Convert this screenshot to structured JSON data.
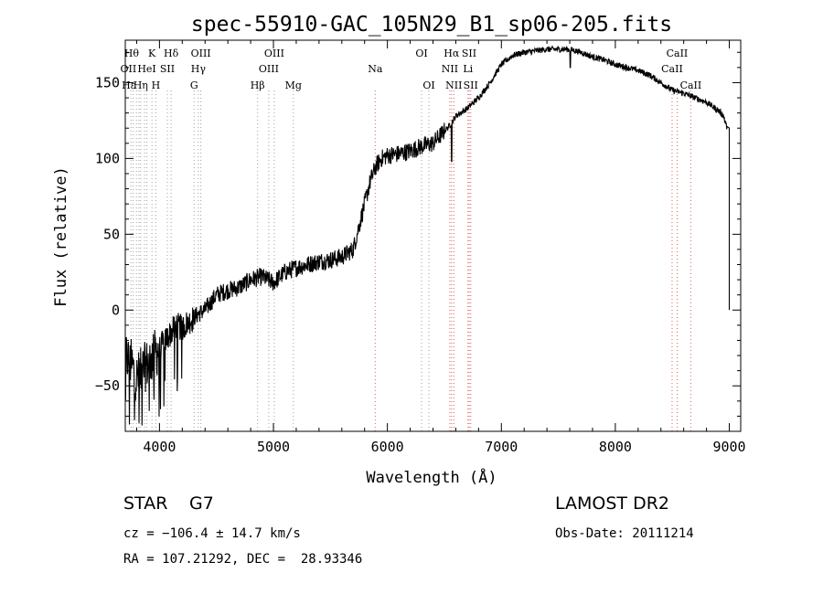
{
  "chart_data": {
    "type": "line",
    "title": "spec-55910-GAC_105N29_B1_sp06-205.fits",
    "xlabel": "Wavelength (Å)",
    "ylabel": "Flux (relative)",
    "xlim": [
      3700,
      9100
    ],
    "ylim": [
      -80,
      178
    ],
    "x_ticks": [
      4000,
      5000,
      6000,
      7000,
      8000,
      9000
    ],
    "y_ticks": [
      -50,
      0,
      50,
      100,
      150
    ],
    "y_tick_labels": [
      "−50",
      "0",
      "50",
      "100",
      "150"
    ],
    "series": [
      {
        "x": [
          3700,
          3750,
          3800,
          3850,
          3900,
          3950,
          4000,
          4050,
          4100,
          4150,
          4200,
          4250,
          4300,
          4350,
          4400,
          4450,
          4500,
          4600,
          4700,
          4800,
          4900,
          5000,
          5100,
          5200,
          5300,
          5400,
          5500,
          5600,
          5700,
          5750,
          5800,
          5850,
          5900,
          5950,
          6000,
          6100,
          6200,
          6300,
          6400,
          6500,
          6550,
          6600,
          6700,
          6800,
          6900,
          7000,
          7100,
          7200,
          7300,
          7400,
          7500,
          7600,
          7700,
          7800,
          7900,
          8000,
          8100,
          8200,
          8300,
          8400,
          8500,
          8600,
          8700,
          8800,
          8900,
          8950,
          8980,
          9000
        ],
        "y": [
          -30,
          -35,
          -45,
          -40,
          -35,
          -30,
          -25,
          -20,
          -15,
          -10,
          -12,
          -8,
          -5,
          -2,
          0,
          5,
          10,
          13,
          15,
          20,
          22,
          18,
          25,
          28,
          30,
          32,
          33,
          35,
          40,
          55,
          70,
          85,
          95,
          100,
          102,
          103,
          105,
          108,
          110,
          118,
          122,
          128,
          133,
          140,
          150,
          162,
          168,
          170,
          171,
          172,
          172,
          172,
          170,
          167,
          165,
          162,
          160,
          158,
          155,
          150,
          145,
          143,
          140,
          137,
          132,
          128,
          120,
          0
        ]
      }
    ],
    "lines": [
      {
        "wavelength": 3750,
        "color": "#a0a0a0"
      },
      {
        "wavelength": 3770,
        "color": "#a0a0a0"
      },
      {
        "wavelength": 3798,
        "color": "#a0a0a0"
      },
      {
        "wavelength": 3820,
        "color": "#a0a0a0"
      },
      {
        "wavelength": 3835,
        "color": "#a0a0a0"
      },
      {
        "wavelength": 3869,
        "color": "#a0a0a0"
      },
      {
        "wavelength": 3889,
        "color": "#a0a0a0"
      },
      {
        "wavelength": 3934,
        "color": "#a0a0a0"
      },
      {
        "wavelength": 3968,
        "color": "#a0a0a0"
      },
      {
        "wavelength": 4069,
        "color": "#a0a0a0"
      },
      {
        "wavelength": 4102,
        "color": "#a0a0a0"
      },
      {
        "wavelength": 4304,
        "color": "#a0a0a0"
      },
      {
        "wavelength": 4341,
        "color": "#a0a0a0"
      },
      {
        "wavelength": 4363,
        "color": "#a0a0a0"
      },
      {
        "wavelength": 4861,
        "color": "#a0a0a0"
      },
      {
        "wavelength": 4959,
        "color": "#a0a0a0"
      },
      {
        "wavelength": 5007,
        "color": "#a0a0a0"
      },
      {
        "wavelength": 5175,
        "color": "#a0a0a0"
      },
      {
        "wavelength": 5893,
        "color": "#e06060"
      },
      {
        "wavelength": 6300,
        "color": "#a0a0a0"
      },
      {
        "wavelength": 6364,
        "color": "#a0a0a0"
      },
      {
        "wavelength": 6548,
        "color": "#e06060"
      },
      {
        "wavelength": 6563,
        "color": "#e06060"
      },
      {
        "wavelength": 6583,
        "color": "#e06060"
      },
      {
        "wavelength": 6707,
        "color": "#e06060"
      },
      {
        "wavelength": 6717,
        "color": "#e06060"
      },
      {
        "wavelength": 6731,
        "color": "#e06060"
      },
      {
        "wavelength": 8498,
        "color": "#e06060"
      },
      {
        "wavelength": 8542,
        "color": "#e06060"
      },
      {
        "wavelength": 8662,
        "color": "#e06060"
      }
    ],
    "line_labels": [
      {
        "text": "Hθ",
        "wavelength": 3755,
        "row": 0
      },
      {
        "text": "K",
        "wavelength": 3934,
        "row": 0
      },
      {
        "text": "Hδ",
        "wavelength": 4102,
        "row": 0
      },
      {
        "text": "OIII",
        "wavelength": 4363,
        "row": 0
      },
      {
        "text": "OIII",
        "wavelength": 5007,
        "row": 0
      },
      {
        "text": "OI",
        "wavelength": 6300,
        "row": 0
      },
      {
        "text": "Hα",
        "wavelength": 6563,
        "row": 0
      },
      {
        "text": "SII",
        "wavelength": 6717,
        "row": 0
      },
      {
        "text": "CaII",
        "wavelength": 8542,
        "row": 0
      },
      {
        "text": "OII",
        "wavelength": 3727,
        "row": 1
      },
      {
        "text": "HeI",
        "wavelength": 3889,
        "row": 1
      },
      {
        "text": "SII",
        "wavelength": 4069,
        "row": 1
      },
      {
        "text": "Hγ",
        "wavelength": 4341,
        "row": 1
      },
      {
        "text": "OIII",
        "wavelength": 4959,
        "row": 1
      },
      {
        "text": "Na",
        "wavelength": 5893,
        "row": 1
      },
      {
        "text": "NII",
        "wavelength": 6548,
        "row": 1
      },
      {
        "text": "Li",
        "wavelength": 6707,
        "row": 1
      },
      {
        "text": "CaII",
        "wavelength": 8498,
        "row": 1
      },
      {
        "text": "Hε",
        "wavelength": 3730,
        "row": 2
      },
      {
        "text": "Hη",
        "wavelength": 3835,
        "row": 2
      },
      {
        "text": "H",
        "wavelength": 3968,
        "row": 2
      },
      {
        "text": "G",
        "wavelength": 4304,
        "row": 2
      },
      {
        "text": "Hβ",
        "wavelength": 4861,
        "row": 2
      },
      {
        "text": "Mg",
        "wavelength": 5175,
        "row": 2
      },
      {
        "text": "OI",
        "wavelength": 6364,
        "row": 2
      },
      {
        "text": "NII",
        "wavelength": 6583,
        "row": 2
      },
      {
        "text": "SII",
        "wavelength": 6731,
        "row": 2
      },
      {
        "text": "CaII",
        "wavelength": 8662,
        "row": 2
      }
    ]
  },
  "info": {
    "class_label": "STAR",
    "subclass": "G7",
    "survey": "LAMOST DR2",
    "cz_text": "cz = −106.4 ± 14.7 km/s",
    "obs_date_text": "Obs-Date: 20111214",
    "radec_text": "RA = 107.21292, DEC =  28.93346"
  }
}
